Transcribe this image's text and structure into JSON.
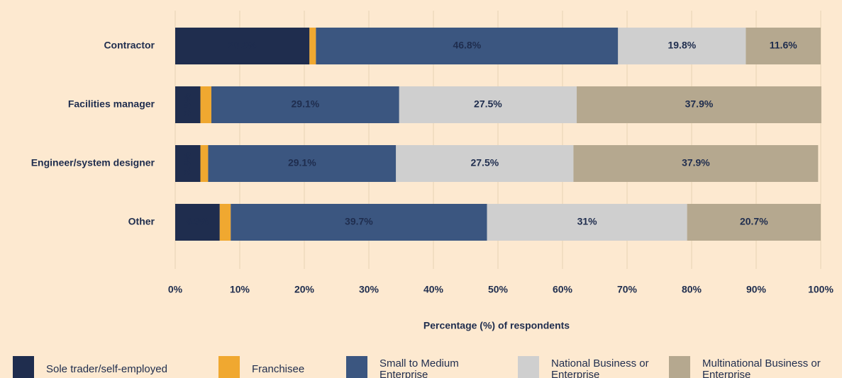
{
  "chart_data": {
    "type": "stacked-bar-horizontal",
    "categories": [
      "Contractor",
      "Facilities manager",
      "Engineer/system designer",
      "Other"
    ],
    "series": [
      {
        "name": "Sole trader/self-employed",
        "color": "#1f2d4e",
        "values": [
          20.8,
          3.9,
          3.9,
          6.9
        ],
        "value_labels": [
          "20.8%",
          "3.9%",
          "3.9%",
          "6.9%"
        ]
      },
      {
        "name": "Franchisee",
        "color": "#f0a830",
        "values": [
          1.0,
          1.7,
          1.2,
          1.7
        ]
      },
      {
        "name": "Small to Medium Enterprise",
        "color": "#3b5680",
        "values": [
          46.8,
          29.1,
          29.1,
          39.7
        ],
        "value_labels": [
          "46.8%",
          "29.1%",
          "29.1%",
          "39.7%"
        ]
      },
      {
        "name": "National Business or Enterprise",
        "color": "#cfcfcf",
        "values": [
          19.8,
          27.5,
          27.5,
          31
        ],
        "value_labels": [
          "19.8%",
          "27.5%",
          "27.5%",
          "31%"
        ]
      },
      {
        "name": "Multinational Business or Enterprise",
        "color": "#b5a88f",
        "values": [
          11.6,
          37.9,
          37.9,
          20.7
        ],
        "value_labels": [
          "11.6%",
          "37.9%",
          "37.9%",
          "20.7%"
        ]
      }
    ],
    "xlim": [
      0,
      100
    ],
    "xticks": [
      {
        "value": 0,
        "label": "0%"
      },
      {
        "value": 10,
        "label": "10%"
      },
      {
        "value": 20,
        "label": "20%"
      },
      {
        "value": 30,
        "label": "30%"
      },
      {
        "value": 40,
        "label": "40%"
      },
      {
        "value": 50,
        "label": "50%"
      },
      {
        "value": 60,
        "label": "60%"
      },
      {
        "value": 70,
        "label": "70%"
      },
      {
        "value": 80,
        "label": "80%"
      },
      {
        "value": 90,
        "label": "90%"
      },
      {
        "value": 100,
        "label": "100%"
      }
    ],
    "xlabel": "Percentage (%) of respondents",
    "grid": true,
    "legend": "bottom"
  }
}
